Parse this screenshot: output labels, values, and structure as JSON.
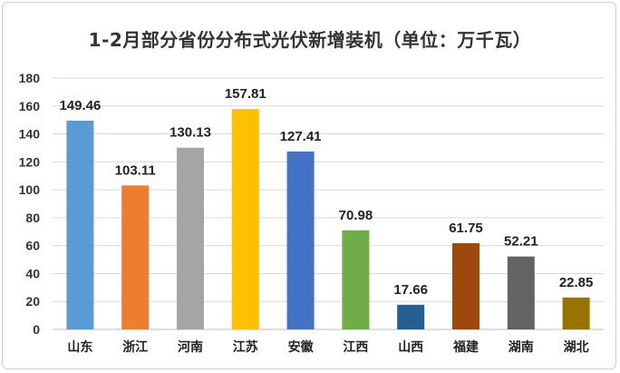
{
  "chart_data": {
    "type": "bar",
    "title": "1-2月部分省份分布式光伏新增装机（单位：万千瓦）",
    "categories": [
      "山东",
      "浙江",
      "河南",
      "江苏",
      "安徽",
      "江西",
      "山西",
      "福建",
      "湖南",
      "湖北"
    ],
    "values": [
      149.46,
      103.11,
      130.13,
      157.81,
      127.41,
      70.98,
      17.66,
      61.75,
      52.21,
      22.85
    ],
    "data_labels": [
      "149.46",
      "103.11",
      "130.13",
      "157.81",
      "127.41",
      "70.98",
      "17.66",
      "61.75",
      "52.21",
      "22.85"
    ],
    "colors": [
      "#5b9bd5",
      "#ed7d31",
      "#a5a5a5",
      "#ffc000",
      "#4472c4",
      "#70ad47",
      "#255e91",
      "#9e480e",
      "#636363",
      "#997300"
    ],
    "ylim": [
      0,
      180
    ],
    "yticks": [
      0,
      20,
      40,
      60,
      80,
      100,
      120,
      140,
      160,
      180
    ],
    "grid": true,
    "legend": "none",
    "xlabel": "",
    "ylabel": ""
  }
}
